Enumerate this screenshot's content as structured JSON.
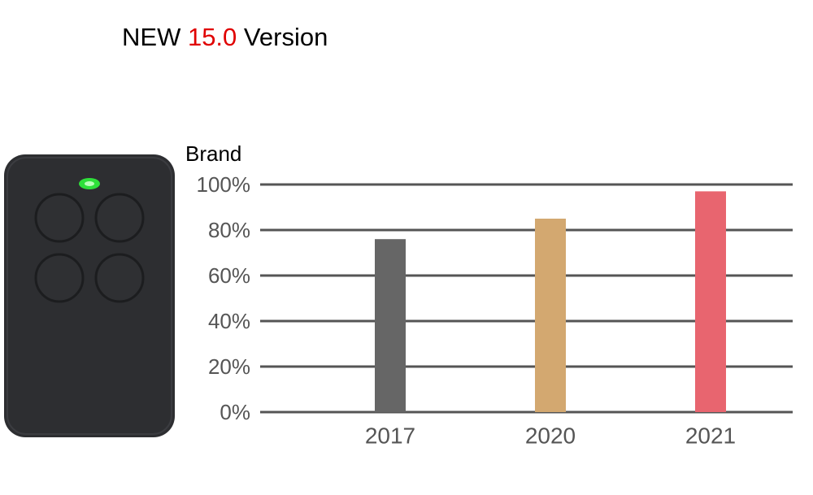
{
  "chart_data": {
    "type": "bar",
    "title": {
      "prefix": "NEW",
      "highlight": "15.0",
      "suffix": "Version"
    },
    "ylabel": "Brand",
    "categories": [
      "2017",
      "2020",
      "2021"
    ],
    "values": [
      76,
      85,
      97
    ],
    "colors": [
      "#666666",
      "#d3a870",
      "#e8656f"
    ],
    "ylim": [
      0,
      100
    ],
    "yticks": [
      {
        "value": 0,
        "label": "0%"
      },
      {
        "value": 20,
        "label": "20%"
      },
      {
        "value": 40,
        "label": "40%"
      },
      {
        "value": 60,
        "label": "60%"
      },
      {
        "value": 80,
        "label": "80%"
      },
      {
        "value": 100,
        "label": "100%"
      }
    ],
    "grid": true
  }
}
